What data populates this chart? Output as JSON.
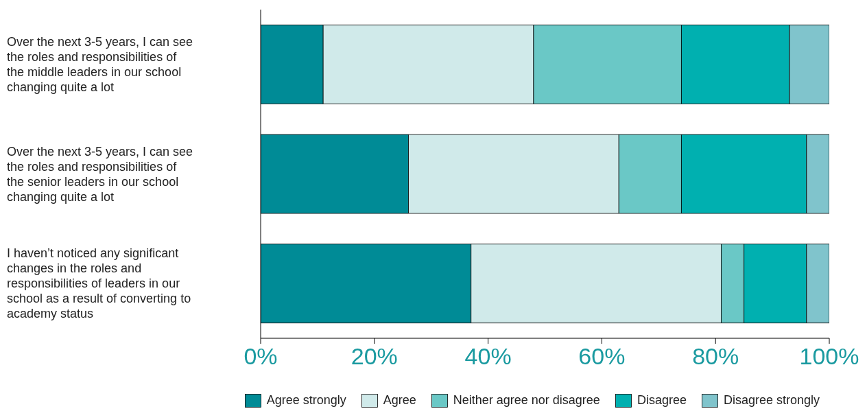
{
  "chart_data": {
    "type": "bar",
    "orientation": "horizontal",
    "stacked": true,
    "categories": [
      "Over the next 3-5 years, I can see the roles and responsibilities of the middle leaders in our school changing quite a lot",
      "Over the next 3-5 years, I can see the roles and responsibilities of the senior leaders in our school changing quite a lot",
      "I haven’t noticed any significant changes in the roles and responsibilities of leaders in our school as a result of converting to academy status"
    ],
    "series": [
      {
        "name": "Agree strongly",
        "color": "#008b96",
        "values": [
          11,
          26,
          37
        ]
      },
      {
        "name": "Agree",
        "color": "#d0eaea",
        "values": [
          37,
          37,
          44
        ]
      },
      {
        "name": "Neither agree nor disagree",
        "color": "#6ac8c6",
        "values": [
          26,
          11,
          4
        ]
      },
      {
        "name": "Disagree",
        "color": "#00b0b0",
        "values": [
          19,
          22,
          11
        ]
      },
      {
        "name": "Disagree strongly",
        "color": "#80c4cc",
        "values": [
          7,
          4,
          4
        ]
      }
    ],
    "xlim": [
      0,
      100
    ],
    "xticks": [
      {
        "value": 0,
        "label": "0%"
      },
      {
        "value": 20,
        "label": "20%"
      },
      {
        "value": 40,
        "label": "40%"
      },
      {
        "value": 60,
        "label": "60%"
      },
      {
        "value": 80,
        "label": "80%"
      },
      {
        "value": 100,
        "label": "100%"
      }
    ],
    "grid": false,
    "legend": "bottom right"
  }
}
